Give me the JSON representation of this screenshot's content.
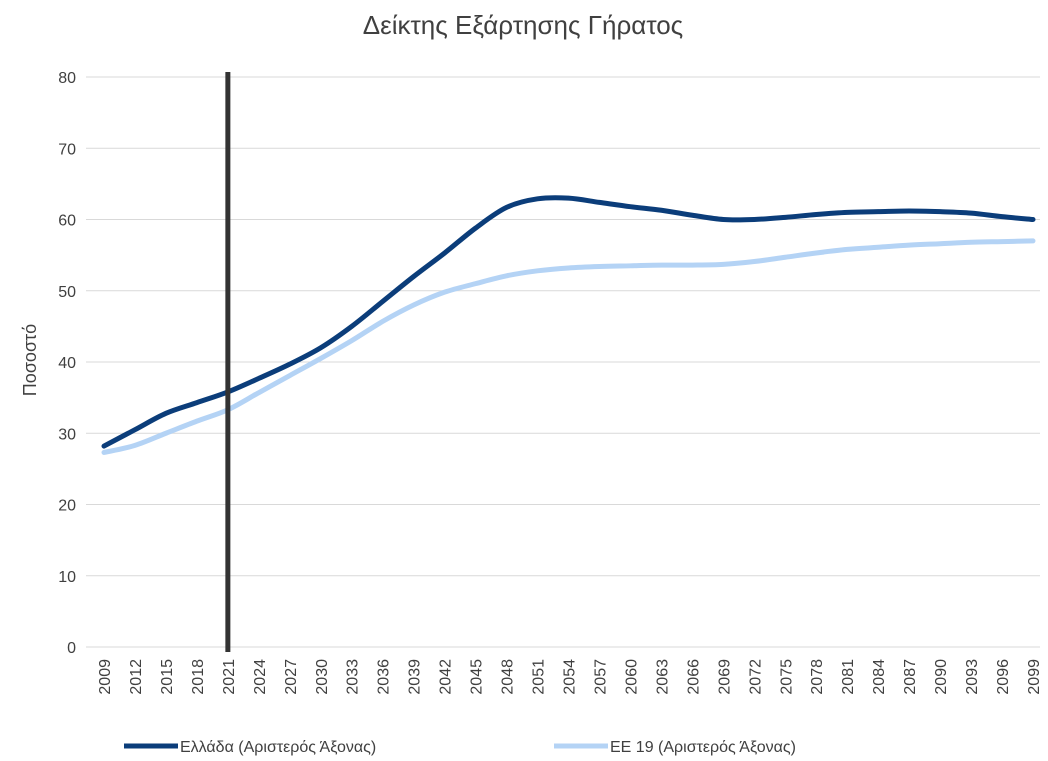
{
  "chart_data": {
    "type": "line",
    "title": "Δείκτης Εξάρτησης Γήρατος",
    "y_label": "Ποσοστό",
    "x": [
      2009,
      2012,
      2015,
      2018,
      2021,
      2024,
      2027,
      2030,
      2033,
      2036,
      2039,
      2042,
      2045,
      2048,
      2051,
      2054,
      2057,
      2060,
      2063,
      2066,
      2069,
      2072,
      2075,
      2078,
      2081,
      2084,
      2087,
      2090,
      2093,
      2096,
      2099
    ],
    "xlim": [
      2009,
      2099
    ],
    "xticks": [
      2009,
      2012,
      2015,
      2018,
      2021,
      2024,
      2027,
      2030,
      2033,
      2036,
      2039,
      2042,
      2045,
      2048,
      2051,
      2054,
      2057,
      2060,
      2063,
      2066,
      2069,
      2072,
      2075,
      2078,
      2081,
      2084,
      2087,
      2090,
      2093,
      2096,
      2099
    ],
    "ylim": [
      0,
      80
    ],
    "yticks": [
      0,
      10,
      20,
      30,
      40,
      50,
      60,
      70,
      80
    ],
    "grid": true,
    "vline": 2021,
    "legend": "bottom",
    "series": [
      {
        "name": "Ελλάδα (Αριστερός Άξονας)",
        "color": "#0b3d7a",
        "values": [
          28.2,
          30.5,
          32.8,
          34.3,
          35.8,
          37.7,
          39.7,
          42.0,
          45.0,
          48.5,
          52.0,
          55.3,
          58.8,
          61.7,
          62.9,
          63.0,
          62.4,
          61.8,
          61.3,
          60.6,
          60.0,
          60.0,
          60.3,
          60.7,
          61.0,
          61.1,
          61.2,
          61.1,
          60.9,
          60.4,
          60.0
        ]
      },
      {
        "name": "ΕΕ 19 (Αριστερός Άξονας)",
        "color": "#b4d3f5",
        "values": [
          27.3,
          28.3,
          30.0,
          31.7,
          33.3,
          35.7,
          38.1,
          40.5,
          43.0,
          45.7,
          48.0,
          49.8,
          51.0,
          52.1,
          52.8,
          53.2,
          53.4,
          53.5,
          53.6,
          53.6,
          53.7,
          54.1,
          54.7,
          55.3,
          55.8,
          56.1,
          56.4,
          56.6,
          56.8,
          56.9,
          57.0
        ]
      }
    ]
  }
}
